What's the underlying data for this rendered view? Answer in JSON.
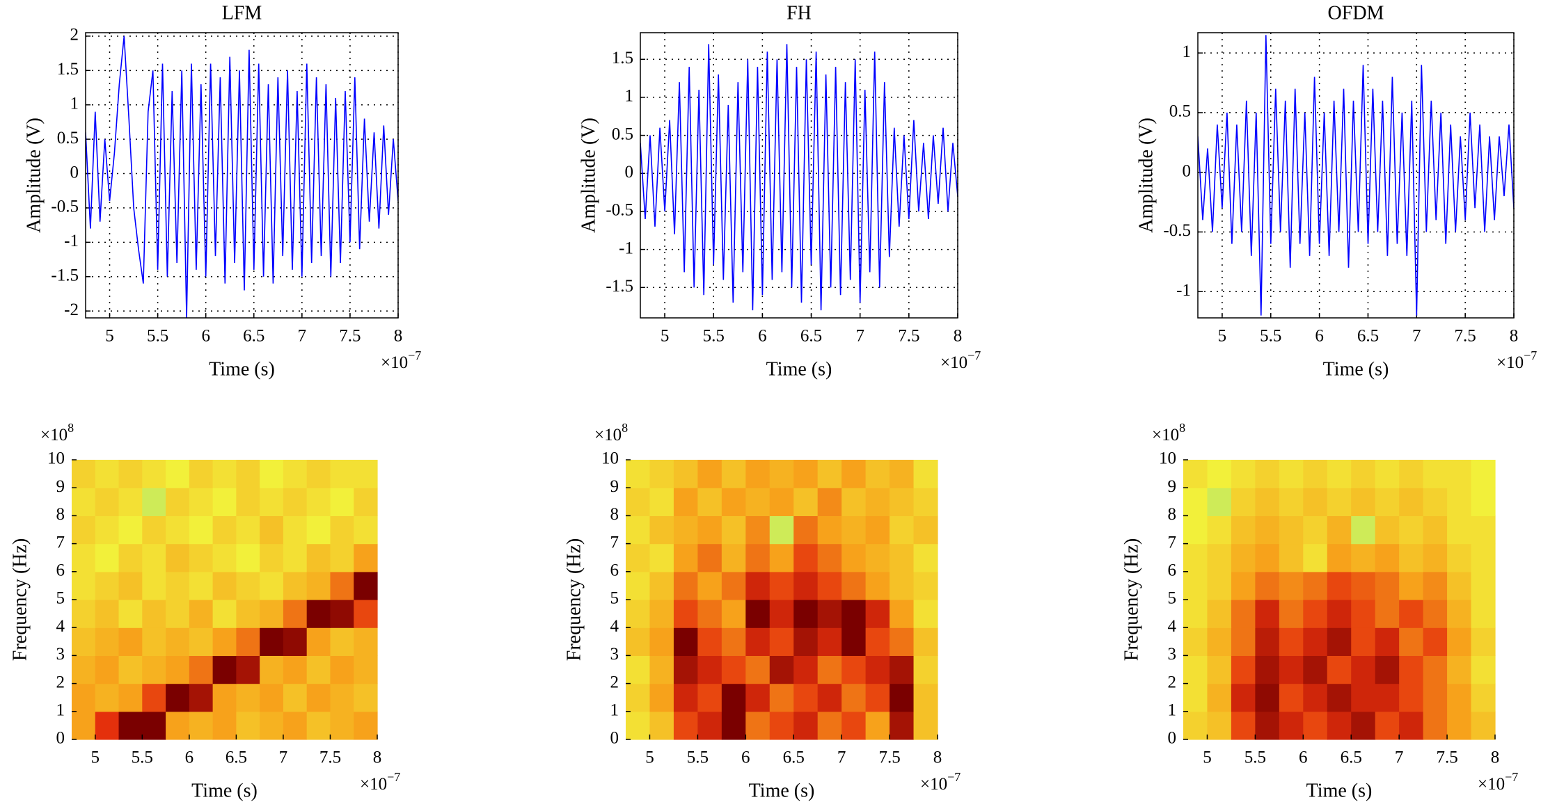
{
  "chart_data": [
    {
      "type": "line",
      "title": "LFM",
      "xlabel": "Time (s)",
      "ylabel": "Amplitude (V)",
      "x_multiplier": {
        "base": "×10",
        "exponent": "−7"
      },
      "xlim": [
        4.75,
        8
      ],
      "ylim": [
        -2.1,
        2.05
      ],
      "xticks": [
        5,
        5.5,
        6,
        6.5,
        7,
        7.5,
        8
      ],
      "yticks": [
        -2,
        -1.5,
        -1,
        -0.5,
        0,
        0.5,
        1,
        1.5,
        2
      ],
      "grid": true,
      "color": "#0000ff",
      "x": [
        4.75,
        4.8,
        4.85,
        4.9,
        4.95,
        5,
        5.05,
        5.1,
        5.15,
        5.2,
        5.25,
        5.3,
        5.35,
        5.4,
        5.45,
        5.5,
        5.55,
        5.6,
        5.65,
        5.7,
        5.75,
        5.8,
        5.85,
        5.9,
        5.95,
        6,
        6.05,
        6.1,
        6.15,
        6.2,
        6.25,
        6.3,
        6.35,
        6.4,
        6.45,
        6.5,
        6.55,
        6.6,
        6.65,
        6.7,
        6.75,
        6.8,
        6.85,
        6.9,
        6.95,
        7,
        7.05,
        7.1,
        7.15,
        7.2,
        7.25,
        7.3,
        7.35,
        7.4,
        7.45,
        7.5,
        7.55,
        7.6,
        7.65,
        7.7,
        7.75,
        7.8,
        7.85,
        7.9,
        7.95,
        8
      ],
      "values": [
        0.6,
        -0.8,
        0.9,
        -0.7,
        0.5,
        -0.4,
        0.3,
        1.3,
        2.0,
        0.8,
        -0.5,
        -1.1,
        -1.6,
        0.9,
        1.5,
        -1.4,
        1.6,
        -1.5,
        1.2,
        -1.3,
        1.5,
        -2.1,
        1.6,
        -1.4,
        1.3,
        -1.5,
        1.6,
        -1.2,
        1.4,
        -1.6,
        1.7,
        -1.3,
        1.5,
        -1.7,
        1.8,
        -1.4,
        1.6,
        -1.5,
        1.3,
        -1.6,
        1.4,
        -1.2,
        1.5,
        -1.4,
        1.2,
        -1.5,
        1.6,
        -1.3,
        1.4,
        -1.2,
        1.3,
        -1.5,
        1.1,
        -1.3,
        1.2,
        -1.0,
        1.4,
        -1.1,
        0.8,
        -0.7,
        0.6,
        -0.8,
        0.7,
        -0.6,
        0.5,
        -0.4
      ]
    },
    {
      "type": "line",
      "title": "FH",
      "xlabel": "Time (s)",
      "ylabel": "Amplitude (V)",
      "x_multiplier": {
        "base": "×10",
        "exponent": "−7"
      },
      "xlim": [
        4.75,
        8
      ],
      "ylim": [
        -1.9,
        1.85
      ],
      "xticks": [
        5,
        5.5,
        6,
        6.5,
        7,
        7.5,
        8
      ],
      "yticks": [
        -1.5,
        -1,
        -0.5,
        0,
        0.5,
        1,
        1.5
      ],
      "grid": true,
      "color": "#0000ff",
      "x": [
        4.75,
        4.8,
        4.85,
        4.9,
        4.95,
        5,
        5.05,
        5.1,
        5.15,
        5.2,
        5.25,
        5.3,
        5.35,
        5.4,
        5.45,
        5.5,
        5.55,
        5.6,
        5.65,
        5.7,
        5.75,
        5.8,
        5.85,
        5.9,
        5.95,
        6,
        6.05,
        6.1,
        6.15,
        6.2,
        6.25,
        6.3,
        6.35,
        6.4,
        6.45,
        6.5,
        6.55,
        6.6,
        6.65,
        6.7,
        6.75,
        6.8,
        6.85,
        6.9,
        6.95,
        7,
        7.05,
        7.1,
        7.15,
        7.2,
        7.25,
        7.3,
        7.35,
        7.4,
        7.45,
        7.5,
        7.55,
        7.6,
        7.65,
        7.7,
        7.75,
        7.8,
        7.85,
        7.9,
        7.95,
        8
      ],
      "values": [
        0.4,
        -0.6,
        0.5,
        -0.7,
        0.6,
        -0.5,
        0.7,
        -0.8,
        1.2,
        -1.3,
        1.4,
        -1.5,
        1.1,
        -1.6,
        1.7,
        -1.2,
        1.3,
        -1.4,
        0.9,
        -1.7,
        1.2,
        -1.3,
        1.5,
        -1.8,
        1.4,
        -1.6,
        1.6,
        -1.4,
        1.5,
        -1.3,
        1.7,
        -1.5,
        1.4,
        -1.7,
        1.5,
        -1.2,
        1.6,
        -1.8,
        1.3,
        -1.5,
        1.4,
        -1.6,
        1.2,
        -1.4,
        1.5,
        -1.7,
        1.1,
        -1.3,
        1.6,
        -1.5,
        1.2,
        -1.1,
        0.6,
        -0.7,
        0.5,
        -0.6,
        0.7,
        -0.5,
        0.4,
        -0.6,
        0.5,
        -0.4,
        0.6,
        -0.5,
        0.4,
        -0.3
      ]
    },
    {
      "type": "line",
      "title": "OFDM",
      "xlabel": "Time (s)",
      "ylabel": "Amplitude (V)",
      "x_multiplier": {
        "base": "×10",
        "exponent": "−7"
      },
      "xlim": [
        4.75,
        8
      ],
      "ylim": [
        -1.22,
        1.17
      ],
      "xticks": [
        5,
        5.5,
        6,
        6.5,
        7,
        7.5,
        8
      ],
      "yticks": [
        -1,
        -0.5,
        0,
        0.5,
        1
      ],
      "grid": true,
      "color": "#0000ff",
      "x": [
        4.75,
        4.8,
        4.85,
        4.9,
        4.95,
        5,
        5.05,
        5.1,
        5.15,
        5.2,
        5.25,
        5.3,
        5.35,
        5.4,
        5.45,
        5.5,
        5.55,
        5.6,
        5.65,
        5.7,
        5.75,
        5.8,
        5.85,
        5.9,
        5.95,
        6,
        6.05,
        6.1,
        6.15,
        6.2,
        6.25,
        6.3,
        6.35,
        6.4,
        6.45,
        6.5,
        6.55,
        6.6,
        6.65,
        6.7,
        6.75,
        6.8,
        6.85,
        6.9,
        6.95,
        7,
        7.05,
        7.1,
        7.15,
        7.2,
        7.25,
        7.3,
        7.35,
        7.4,
        7.45,
        7.5,
        7.55,
        7.6,
        7.65,
        7.7,
        7.75,
        7.8,
        7.85,
        7.9,
        7.95,
        8
      ],
      "values": [
        0.3,
        -0.4,
        0.2,
        -0.5,
        0.4,
        -0.3,
        0.5,
        -0.6,
        0.4,
        -0.5,
        0.6,
        -0.7,
        0.5,
        -1.2,
        1.15,
        -0.6,
        0.7,
        -0.5,
        0.6,
        -0.8,
        0.7,
        -0.6,
        0.5,
        -0.7,
        0.8,
        -0.6,
        0.5,
        -0.7,
        0.6,
        -0.5,
        0.7,
        -0.8,
        0.6,
        -0.5,
        0.9,
        -0.6,
        0.7,
        -0.5,
        0.6,
        -0.7,
        0.8,
        -0.6,
        0.5,
        -0.7,
        0.6,
        -1.2,
        0.9,
        -0.5,
        0.6,
        -0.4,
        0.5,
        -0.6,
        0.4,
        -0.5,
        0.3,
        -0.4,
        0.5,
        -0.3,
        0.4,
        -0.5,
        0.3,
        -0.4,
        0.3,
        -0.2,
        0.4,
        -0.3
      ]
    },
    {
      "type": "heatmap",
      "xlabel": "Time (s)",
      "ylabel": "Frequency (Hz)",
      "x_multiplier": {
        "base": "×10",
        "exponent": "−7"
      },
      "y_multiplier": {
        "base": "×10",
        "exponent": "8"
      },
      "xlim": [
        4.75,
        8
      ],
      "ylim": [
        0,
        10
      ],
      "xticks": [
        5,
        5.5,
        6,
        6.5,
        7,
        7.5,
        8
      ],
      "yticks": [
        0,
        1,
        2,
        3,
        4,
        5,
        6,
        7,
        8,
        9,
        10
      ],
      "colormap": [
        "#3fd8d0",
        "#f2f03a",
        "#f7a21b",
        "#e4300c",
        "#7a0000"
      ],
      "xbins": [
        4.75,
        5,
        5.25,
        5.5,
        5.75,
        6,
        6.25,
        6.5,
        6.75,
        7,
        7.25,
        7.5,
        7.75,
        8
      ],
      "ybins": [
        0,
        1,
        2,
        3,
        4,
        5,
        6,
        7,
        8,
        9,
        10
      ],
      "values": [
        [
          0.5,
          0.75,
          1,
          1,
          0.5,
          0.45,
          0.5,
          0.4,
          0.45,
          0.5,
          0.4,
          0.45,
          0.5
        ],
        [
          0.5,
          0.45,
          0.5,
          0.7,
          1,
          0.9,
          0.5,
          0.45,
          0.5,
          0.4,
          0.5,
          0.45,
          0.4
        ],
        [
          0.45,
          0.5,
          0.4,
          0.45,
          0.5,
          0.6,
          1,
          0.9,
          0.45,
          0.5,
          0.4,
          0.5,
          0.45
        ],
        [
          0.4,
          0.45,
          0.5,
          0.4,
          0.45,
          0.4,
          0.5,
          0.6,
          1,
          0.95,
          0.5,
          0.4,
          0.45
        ],
        [
          0.35,
          0.4,
          0.3,
          0.4,
          0.35,
          0.45,
          0.3,
          0.4,
          0.45,
          0.6,
          1,
          0.95,
          0.7
        ],
        [
          0.3,
          0.35,
          0.4,
          0.3,
          0.35,
          0.3,
          0.4,
          0.35,
          0.3,
          0.4,
          0.45,
          0.6,
          1
        ],
        [
          0.3,
          0.25,
          0.35,
          0.3,
          0.4,
          0.35,
          0.3,
          0.25,
          0.35,
          0.3,
          0.4,
          0.35,
          0.5
        ],
        [
          0.35,
          0.3,
          0.25,
          0.35,
          0.3,
          0.25,
          0.35,
          0.3,
          0.4,
          0.3,
          0.25,
          0.35,
          0.3
        ],
        [
          0.3,
          0.35,
          0.3,
          0.2,
          0.35,
          0.3,
          0.25,
          0.35,
          0.3,
          0.35,
          0.3,
          0.25,
          0.35
        ],
        [
          0.35,
          0.3,
          0.35,
          0.3,
          0.25,
          0.35,
          0.3,
          0.35,
          0.25,
          0.3,
          0.35,
          0.3,
          0.3
        ]
      ]
    },
    {
      "type": "heatmap",
      "xlabel": "Time (s)",
      "ylabel": "Frequency (Hz)",
      "x_multiplier": {
        "base": "×10",
        "exponent": "−7"
      },
      "y_multiplier": {
        "base": "×10",
        "exponent": "8"
      },
      "xlim": [
        4.75,
        8
      ],
      "ylim": [
        0,
        10
      ],
      "xticks": [
        5,
        5.5,
        6,
        6.5,
        7,
        7.5,
        8
      ],
      "yticks": [
        0,
        1,
        2,
        3,
        4,
        5,
        6,
        7,
        8,
        9,
        10
      ],
      "colormap": [
        "#3fd8d0",
        "#f2f03a",
        "#f7a21b",
        "#e4300c",
        "#7a0000"
      ],
      "xbins": [
        4.75,
        5,
        5.25,
        5.5,
        5.75,
        6,
        6.25,
        6.5,
        6.75,
        7,
        7.25,
        7.5,
        7.75,
        8
      ],
      "ybins": [
        0,
        1,
        2,
        3,
        4,
        5,
        6,
        7,
        8,
        9,
        10
      ],
      "values": [
        [
          0.3,
          0.4,
          0.7,
          0.8,
          1,
          0.6,
          0.7,
          0.8,
          0.6,
          0.7,
          0.5,
          0.9,
          0.4
        ],
        [
          0.35,
          0.5,
          0.8,
          0.7,
          1,
          0.8,
          0.6,
          0.7,
          0.8,
          0.6,
          0.7,
          1,
          0.4
        ],
        [
          0.3,
          0.45,
          0.9,
          0.8,
          0.7,
          0.6,
          0.9,
          0.8,
          0.6,
          0.7,
          0.8,
          0.9,
          0.35
        ],
        [
          0.4,
          0.5,
          1,
          0.7,
          0.6,
          0.8,
          0.7,
          0.9,
          0.8,
          1,
          0.7,
          0.6,
          0.4
        ],
        [
          0.35,
          0.45,
          0.7,
          0.6,
          0.5,
          1,
          0.8,
          1,
          0.9,
          1,
          0.8,
          0.5,
          0.3
        ],
        [
          0.3,
          0.4,
          0.6,
          0.5,
          0.6,
          0.8,
          0.7,
          0.8,
          0.7,
          0.6,
          0.5,
          0.4,
          0.35
        ],
        [
          0.35,
          0.3,
          0.5,
          0.6,
          0.45,
          0.6,
          0.5,
          0.7,
          0.6,
          0.5,
          0.45,
          0.4,
          0.3
        ],
        [
          0.3,
          0.4,
          0.45,
          0.5,
          0.4,
          0.55,
          0.2,
          0.6,
          0.5,
          0.45,
          0.5,
          0.35,
          0.4
        ],
        [
          0.35,
          0.3,
          0.5,
          0.4,
          0.5,
          0.45,
          0.5,
          0.4,
          0.55,
          0.4,
          0.45,
          0.4,
          0.35
        ],
        [
          0.3,
          0.35,
          0.4,
          0.5,
          0.4,
          0.5,
          0.45,
          0.5,
          0.4,
          0.5,
          0.4,
          0.45,
          0.3
        ]
      ]
    },
    {
      "type": "heatmap",
      "xlabel": "Time (s)",
      "ylabel": "Frequency (Hz)",
      "x_multiplier": {
        "base": "×10",
        "exponent": "−7"
      },
      "y_multiplier": {
        "base": "×10",
        "exponent": "8"
      },
      "xlim": [
        4.75,
        8
      ],
      "ylim": [
        0,
        10
      ],
      "xticks": [
        5,
        5.5,
        6,
        6.5,
        7,
        7.5,
        8
      ],
      "yticks": [
        0,
        1,
        2,
        3,
        4,
        5,
        6,
        7,
        8,
        9,
        10
      ],
      "colormap": [
        "#3fd8d0",
        "#f2f03a",
        "#f7a21b",
        "#e4300c",
        "#7a0000"
      ],
      "xbins": [
        4.75,
        5,
        5.25,
        5.5,
        5.75,
        6,
        6.25,
        6.5,
        6.75,
        7,
        7.25,
        7.5,
        7.75,
        8
      ],
      "ybins": [
        0,
        1,
        2,
        3,
        4,
        5,
        6,
        7,
        8,
        9,
        10
      ],
      "values": [
        [
          0.35,
          0.4,
          0.7,
          0.9,
          0.8,
          0.7,
          0.8,
          0.9,
          0.7,
          0.8,
          0.6,
          0.5,
          0.4
        ],
        [
          0.3,
          0.45,
          0.8,
          0.95,
          0.7,
          0.8,
          0.9,
          0.8,
          0.8,
          0.7,
          0.6,
          0.5,
          0.35
        ],
        [
          0.3,
          0.4,
          0.7,
          0.9,
          0.8,
          0.9,
          0.7,
          0.8,
          0.9,
          0.7,
          0.6,
          0.45,
          0.3
        ],
        [
          0.35,
          0.45,
          0.6,
          0.85,
          0.7,
          0.8,
          0.9,
          0.7,
          0.8,
          0.6,
          0.7,
          0.5,
          0.35
        ],
        [
          0.3,
          0.4,
          0.6,
          0.8,
          0.6,
          0.7,
          0.8,
          0.7,
          0.6,
          0.7,
          0.6,
          0.45,
          0.3
        ],
        [
          0.3,
          0.35,
          0.5,
          0.6,
          0.55,
          0.6,
          0.7,
          0.65,
          0.6,
          0.5,
          0.55,
          0.4,
          0.3
        ],
        [
          0.3,
          0.35,
          0.45,
          0.5,
          0.4,
          0.3,
          0.5,
          0.45,
          0.5,
          0.4,
          0.45,
          0.35,
          0.3
        ],
        [
          0.25,
          0.3,
          0.4,
          0.45,
          0.4,
          0.35,
          0.45,
          0.2,
          0.4,
          0.35,
          0.4,
          0.3,
          0.3
        ],
        [
          0.25,
          0.2,
          0.35,
          0.4,
          0.35,
          0.4,
          0.35,
          0.4,
          0.35,
          0.4,
          0.35,
          0.3,
          0.25
        ],
        [
          0.3,
          0.25,
          0.3,
          0.35,
          0.3,
          0.35,
          0.3,
          0.35,
          0.3,
          0.35,
          0.3,
          0.3,
          0.25
        ]
      ]
    }
  ]
}
